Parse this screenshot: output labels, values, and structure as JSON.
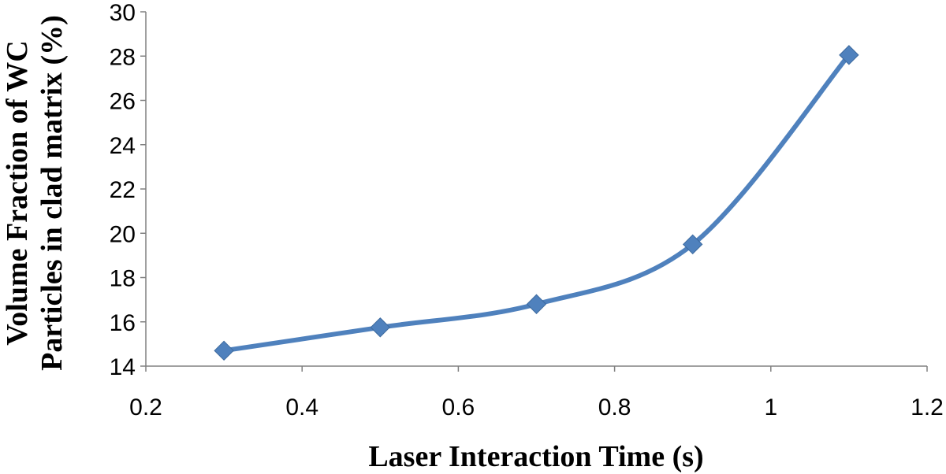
{
  "chart_data": {
    "type": "line",
    "title": "",
    "xlabel": "Laser Interaction Time (s)",
    "ylabel_lines": [
      "Volume Fraction of WC",
      "Particles  in clad matrix (%)"
    ],
    "x": [
      0.3,
      0.5,
      0.7,
      0.9,
      1.1
    ],
    "series": [
      {
        "name": "Volume Fraction of WC",
        "values": [
          14.7,
          15.75,
          16.8,
          19.5,
          28.05
        ],
        "color": "#4f81bd",
        "marker": "diamond",
        "smooth": true
      }
    ],
    "xlim": [
      0.2,
      1.2
    ],
    "ylim": [
      14,
      30
    ],
    "xticks": [
      0.2,
      0.4,
      0.6,
      0.8,
      1,
      1.2
    ],
    "xtick_labels": [
      "0.2",
      "0.4",
      "0.6",
      "0.8",
      "1",
      "1.2"
    ],
    "yticks": [
      14,
      16,
      18,
      20,
      22,
      24,
      26,
      28,
      30
    ],
    "ytick_labels": [
      "14",
      "16",
      "18",
      "20",
      "22",
      "24",
      "26",
      "28",
      "30"
    ],
    "grid": false,
    "legend": "none"
  }
}
